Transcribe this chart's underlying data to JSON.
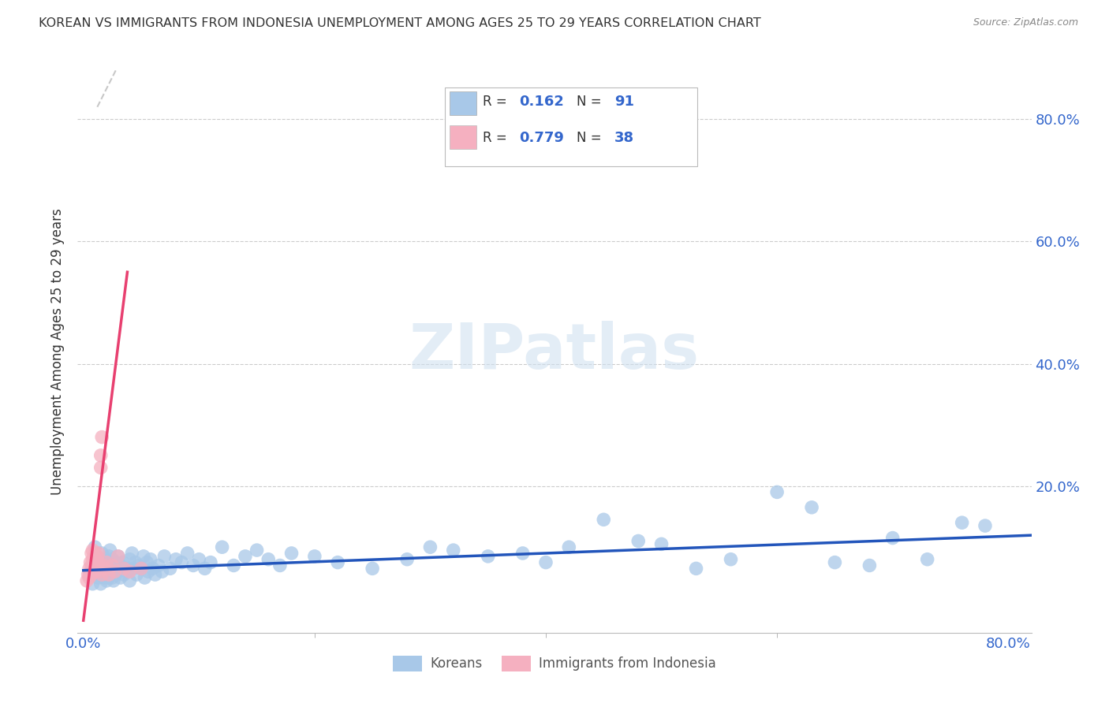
{
  "title": "KOREAN VS IMMIGRANTS FROM INDONESIA UNEMPLOYMENT AMONG AGES 25 TO 29 YEARS CORRELATION CHART",
  "source": "Source: ZipAtlas.com",
  "ylabel": "Unemployment Among Ages 25 to 29 years",
  "watermark": "ZIPatlas",
  "xlim": [
    -0.005,
    0.82
  ],
  "ylim": [
    -0.04,
    0.88
  ],
  "xtick_positions": [
    0.0,
    0.8
  ],
  "xtick_labels": [
    "0.0%",
    "80.0%"
  ],
  "ytick_positions": [
    0.2,
    0.4,
    0.6,
    0.8
  ],
  "ytick_labels": [
    "20.0%",
    "40.0%",
    "60.0%",
    "80.0%"
  ],
  "grid_yticks": [
    0.2,
    0.4,
    0.6,
    0.8
  ],
  "korean_R": "0.162",
  "korean_N": "91",
  "indonesia_R": "0.779",
  "indonesia_N": "38",
  "korean_color": "#a8c8e8",
  "indonesia_color": "#f5b0c0",
  "korean_trend_color": "#2255bb",
  "indonesia_trend_color": "#e84070",
  "dashed_line_color": "#c8c8c8",
  "legend_korean_label": "Koreans",
  "legend_indonesia_label": "Immigrants from Indonesia",
  "korean_scatter_x": [
    0.005,
    0.008,
    0.01,
    0.01,
    0.012,
    0.013,
    0.015,
    0.015,
    0.016,
    0.016,
    0.018,
    0.018,
    0.019,
    0.02,
    0.02,
    0.021,
    0.022,
    0.022,
    0.023,
    0.023,
    0.024,
    0.025,
    0.025,
    0.026,
    0.026,
    0.028,
    0.028,
    0.03,
    0.03,
    0.032,
    0.032,
    0.034,
    0.035,
    0.036,
    0.038,
    0.04,
    0.04,
    0.042,
    0.043,
    0.045,
    0.046,
    0.048,
    0.05,
    0.052,
    0.053,
    0.055,
    0.056,
    0.058,
    0.06,
    0.062,
    0.065,
    0.068,
    0.07,
    0.075,
    0.08,
    0.085,
    0.09,
    0.095,
    0.1,
    0.105,
    0.11,
    0.12,
    0.13,
    0.14,
    0.15,
    0.16,
    0.17,
    0.18,
    0.2,
    0.22,
    0.25,
    0.28,
    0.3,
    0.32,
    0.35,
    0.38,
    0.4,
    0.42,
    0.45,
    0.48,
    0.5,
    0.53,
    0.56,
    0.6,
    0.63,
    0.65,
    0.68,
    0.7,
    0.73,
    0.76,
    0.78
  ],
  "korean_scatter_y": [
    0.055,
    0.04,
    0.07,
    0.1,
    0.06,
    0.05,
    0.08,
    0.04,
    0.07,
    0.09,
    0.05,
    0.07,
    0.055,
    0.045,
    0.065,
    0.075,
    0.05,
    0.085,
    0.06,
    0.095,
    0.07,
    0.05,
    0.08,
    0.065,
    0.045,
    0.075,
    0.055,
    0.06,
    0.085,
    0.05,
    0.07,
    0.075,
    0.055,
    0.065,
    0.06,
    0.08,
    0.045,
    0.09,
    0.065,
    0.075,
    0.055,
    0.07,
    0.065,
    0.085,
    0.05,
    0.075,
    0.06,
    0.08,
    0.065,
    0.055,
    0.07,
    0.06,
    0.085,
    0.065,
    0.08,
    0.075,
    0.09,
    0.07,
    0.08,
    0.065,
    0.075,
    0.1,
    0.07,
    0.085,
    0.095,
    0.08,
    0.07,
    0.09,
    0.085,
    0.075,
    0.065,
    0.08,
    0.1,
    0.095,
    0.085,
    0.09,
    0.075,
    0.1,
    0.145,
    0.11,
    0.105,
    0.065,
    0.08,
    0.19,
    0.165,
    0.075,
    0.07,
    0.115,
    0.08,
    0.14,
    0.135
  ],
  "indonesia_scatter_x": [
    0.003,
    0.004,
    0.005,
    0.005,
    0.006,
    0.006,
    0.007,
    0.007,
    0.007,
    0.008,
    0.008,
    0.008,
    0.009,
    0.009,
    0.01,
    0.01,
    0.01,
    0.011,
    0.011,
    0.012,
    0.012,
    0.013,
    0.013,
    0.014,
    0.015,
    0.015,
    0.016,
    0.016,
    0.017,
    0.018,
    0.02,
    0.022,
    0.025,
    0.027,
    0.03,
    0.035,
    0.04,
    0.05
  ],
  "indonesia_scatter_y": [
    0.045,
    0.055,
    0.05,
    0.065,
    0.06,
    0.075,
    0.055,
    0.07,
    0.09,
    0.065,
    0.08,
    0.095,
    0.07,
    0.085,
    0.06,
    0.075,
    0.09,
    0.065,
    0.08,
    0.07,
    0.085,
    0.075,
    0.09,
    0.06,
    0.23,
    0.25,
    0.055,
    0.28,
    0.07,
    0.065,
    0.075,
    0.055,
    0.07,
    0.06,
    0.085,
    0.065,
    0.06,
    0.065
  ],
  "background_color": "#ffffff",
  "grid_color": "#cccccc",
  "title_color": "#333333",
  "tick_label_color": "#3366cc"
}
